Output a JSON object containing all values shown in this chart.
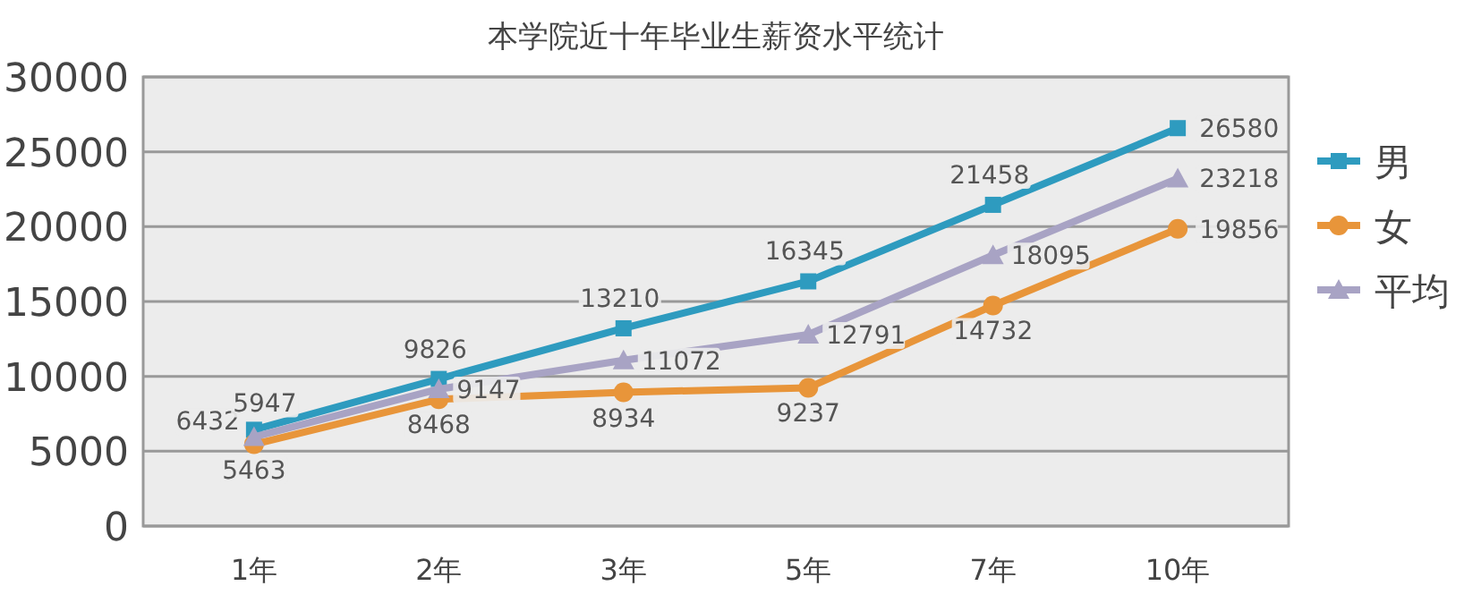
{
  "chart_data": {
    "type": "line",
    "title": "本学院近十年毕业生薪资水平统计",
    "categories": [
      "1年",
      "2年",
      "3年",
      "5年",
      "7年",
      "10年"
    ],
    "series": [
      {
        "name": "男",
        "color": "#2e9bbf",
        "marker": "square",
        "values": [
          6432,
          9826,
          13210,
          16345,
          21458,
          26580
        ]
      },
      {
        "name": "女",
        "color": "#e8953a",
        "marker": "circle",
        "values": [
          5463,
          8468,
          8934,
          9237,
          14732,
          19856
        ]
      },
      {
        "name": "平均",
        "color": "#a8a3c4",
        "marker": "triangle",
        "values": [
          5947,
          9147,
          11072,
          12791,
          18095,
          23218
        ]
      }
    ],
    "ylim": [
      0,
      30000
    ],
    "yticks": [
      0,
      5000,
      10000,
      15000,
      20000,
      25000,
      30000
    ],
    "grid": "y",
    "legend": "right",
    "data_labels": true
  }
}
